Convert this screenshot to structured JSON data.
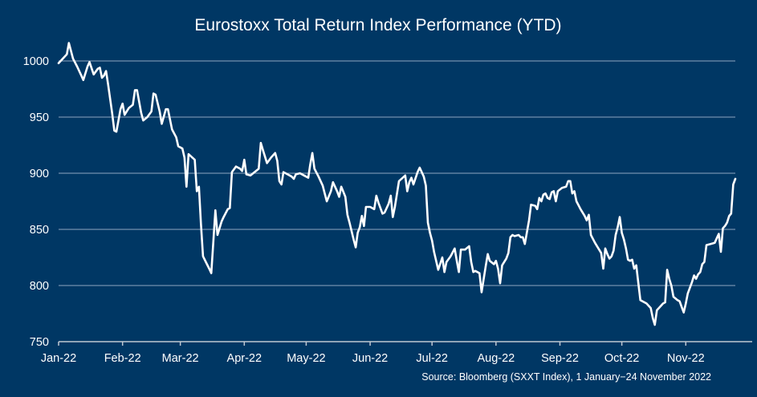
{
  "chart_data": {
    "type": "line",
    "title": "Eurostoxx Total Return Index Performance (YTD)",
    "xlabel": "",
    "ylabel": "",
    "source": "Source: Bloomberg (SXXT Index), 1 January−24 November 2022",
    "ylim": [
      750,
      1020
    ],
    "yticks": [
      "750",
      "800",
      "850",
      "900",
      "950",
      "1000"
    ],
    "ytick_values": [
      750,
      800,
      850,
      900,
      950,
      1000
    ],
    "xticks": [
      "Jan-22",
      "Feb-22",
      "Mar-22",
      "Apr-22",
      "May-22",
      "Jun-22",
      "Jul-22",
      "Aug-22",
      "Sep-22",
      "Oct-22",
      "Nov-22"
    ],
    "xtick_days": [
      0,
      31,
      59,
      90,
      120,
      151,
      181,
      212,
      243,
      273,
      304
    ],
    "x_range_days": [
      0,
      328
    ],
    "grid": "horizontal",
    "legend": "none",
    "colors": {
      "background": "#003764",
      "line": "#ffffff",
      "grid": "#8fa6bf",
      "axis": "#c0c8d2",
      "text": "#ffffff"
    },
    "series": [
      {
        "name": "SXXT Index",
        "x_unit": "days since 1 Jan 2022",
        "points": [
          [
            0,
            998
          ],
          [
            2,
            1002
          ],
          [
            4,
            1006
          ],
          [
            5,
            1016
          ],
          [
            7,
            1002
          ],
          [
            9,
            995
          ],
          [
            11,
            987
          ],
          [
            12,
            983
          ],
          [
            14,
            995
          ],
          [
            15,
            999
          ],
          [
            17,
            988
          ],
          [
            19,
            993
          ],
          [
            20,
            994
          ],
          [
            21,
            985
          ],
          [
            22,
            987
          ],
          [
            23,
            991
          ],
          [
            24,
            979
          ],
          [
            26,
            953
          ],
          [
            27,
            938
          ],
          [
            28,
            937
          ],
          [
            30,
            957
          ],
          [
            31,
            962
          ],
          [
            32,
            952
          ],
          [
            34,
            958
          ],
          [
            36,
            961
          ],
          [
            37,
            974
          ],
          [
            38,
            974
          ],
          [
            40,
            954
          ],
          [
            41,
            947
          ],
          [
            43,
            950
          ],
          [
            45,
            955
          ],
          [
            46,
            971
          ],
          [
            47,
            970
          ],
          [
            49,
            955
          ],
          [
            50,
            944
          ],
          [
            52,
            957
          ],
          [
            53,
            957
          ],
          [
            55,
            939
          ],
          [
            57,
            932
          ],
          [
            58,
            924
          ],
          [
            60,
            922
          ],
          [
            61,
            914
          ],
          [
            62,
            888
          ],
          [
            63,
            917
          ],
          [
            66,
            912
          ],
          [
            67,
            884
          ],
          [
            68,
            888
          ],
          [
            69,
            855
          ],
          [
            70,
            826
          ],
          [
            73,
            815
          ],
          [
            74,
            811
          ],
          [
            76,
            867
          ],
          [
            77,
            845
          ],
          [
            79,
            857
          ],
          [
            80,
            861
          ],
          [
            82,
            868
          ],
          [
            83,
            869
          ],
          [
            84,
            901
          ],
          [
            86,
            906
          ],
          [
            88,
            904
          ],
          [
            89,
            902
          ],
          [
            90,
            912
          ],
          [
            91,
            899
          ],
          [
            93,
            898
          ],
          [
            95,
            901
          ],
          [
            97,
            904
          ],
          [
            98,
            927
          ],
          [
            99,
            921
          ],
          [
            101,
            909
          ],
          [
            103,
            914
          ],
          [
            105,
            918
          ],
          [
            106,
            911
          ],
          [
            107,
            893
          ],
          [
            108,
            890
          ],
          [
            109,
            901
          ],
          [
            111,
            899
          ],
          [
            113,
            897
          ],
          [
            114,
            895
          ],
          [
            115,
            899
          ],
          [
            117,
            900
          ],
          [
            119,
            898
          ],
          [
            121,
            896
          ],
          [
            122,
            908
          ],
          [
            123,
            918
          ],
          [
            124,
            904
          ],
          [
            126,
            897
          ],
          [
            128,
            889
          ],
          [
            129,
            882
          ],
          [
            130,
            875
          ],
          [
            132,
            884
          ],
          [
            133,
            892
          ],
          [
            135,
            884
          ],
          [
            136,
            879
          ],
          [
            137,
            888
          ],
          [
            139,
            879
          ],
          [
            140,
            863
          ],
          [
            141,
            856
          ],
          [
            143,
            841
          ],
          [
            144,
            834
          ],
          [
            145,
            847
          ],
          [
            146,
            852
          ],
          [
            147,
            862
          ],
          [
            148,
            853
          ],
          [
            149,
            870
          ],
          [
            151,
            870
          ],
          [
            153,
            868
          ],
          [
            154,
            880
          ],
          [
            155,
            874
          ],
          [
            157,
            864
          ],
          [
            158,
            865
          ],
          [
            160,
            873
          ],
          [
            161,
            880
          ],
          [
            162,
            861
          ],
          [
            163,
            870
          ],
          [
            165,
            893
          ],
          [
            168,
            898
          ],
          [
            169,
            884
          ],
          [
            170,
            892
          ],
          [
            171,
            896
          ],
          [
            172,
            890
          ],
          [
            174,
            901
          ],
          [
            175,
            905
          ],
          [
            177,
            897
          ],
          [
            178,
            889
          ],
          [
            179,
            856
          ],
          [
            180,
            847
          ],
          [
            181,
            840
          ],
          [
            182,
            830
          ],
          [
            184,
            814
          ],
          [
            186,
            825
          ],
          [
            187,
            812
          ],
          [
            188,
            821
          ],
          [
            190,
            826
          ],
          [
            192,
            833
          ],
          [
            193,
            822
          ],
          [
            194,
            812
          ],
          [
            195,
            832
          ],
          [
            197,
            832
          ],
          [
            199,
            835
          ],
          [
            200,
            821
          ],
          [
            201,
            812
          ],
          [
            202,
            813
          ],
          [
            203,
            812
          ],
          [
            204,
            811
          ],
          [
            205,
            794
          ],
          [
            207,
            817
          ],
          [
            208,
            828
          ],
          [
            209,
            822
          ],
          [
            211,
            819
          ],
          [
            212,
            822
          ],
          [
            213,
            815
          ],
          [
            214,
            802
          ],
          [
            215,
            818
          ],
          [
            217,
            824
          ],
          [
            218,
            829
          ],
          [
            219,
            843
          ],
          [
            220,
            845
          ],
          [
            221,
            844
          ],
          [
            223,
            845
          ],
          [
            224,
            843
          ],
          [
            225,
            843
          ],
          [
            226,
            837
          ],
          [
            228,
            858
          ],
          [
            229,
            872
          ],
          [
            231,
            871
          ],
          [
            232,
            868
          ],
          [
            233,
            878
          ],
          [
            234,
            875
          ],
          [
            235,
            881
          ],
          [
            236,
            882
          ],
          [
            237,
            878
          ],
          [
            238,
            877
          ],
          [
            239,
            883
          ],
          [
            240,
            884
          ],
          [
            241,
            875
          ],
          [
            242,
            884
          ],
          [
            244,
            887
          ],
          [
            246,
            888
          ],
          [
            247,
            893
          ],
          [
            248,
            893
          ],
          [
            249,
            882
          ],
          [
            250,
            884
          ],
          [
            251,
            875
          ],
          [
            253,
            868
          ],
          [
            255,
            862
          ],
          [
            256,
            858
          ],
          [
            257,
            863
          ],
          [
            258,
            845
          ],
          [
            260,
            838
          ],
          [
            262,
            832
          ],
          [
            263,
            829
          ],
          [
            264,
            815
          ],
          [
            265,
            833
          ],
          [
            266,
            828
          ],
          [
            267,
            824
          ],
          [
            268,
            826
          ],
          [
            269,
            831
          ],
          [
            270,
            845
          ],
          [
            271,
            852
          ],
          [
            272,
            861
          ],
          [
            273,
            847
          ],
          [
            274,
            841
          ],
          [
            275,
            833
          ],
          [
            276,
            823
          ],
          [
            277,
            822
          ],
          [
            278,
            823
          ],
          [
            279,
            815
          ],
          [
            280,
            818
          ],
          [
            281,
            802
          ],
          [
            282,
            787
          ],
          [
            283,
            786
          ],
          [
            285,
            784
          ],
          [
            286,
            782
          ],
          [
            287,
            780
          ],
          [
            288,
            771
          ],
          [
            289,
            765
          ],
          [
            290,
            778
          ],
          [
            291,
            780
          ],
          [
            293,
            784
          ],
          [
            294,
            785
          ],
          [
            295,
            814
          ],
          [
            296,
            806
          ],
          [
            297,
            800
          ],
          [
            298,
            790
          ],
          [
            300,
            787
          ],
          [
            301,
            786
          ],
          [
            302,
            781
          ],
          [
            303,
            776
          ],
          [
            304,
            784
          ],
          [
            305,
            793
          ],
          [
            307,
            803
          ],
          [
            308,
            809
          ],
          [
            309,
            806
          ],
          [
            310,
            810
          ],
          [
            311,
            812
          ],
          [
            312,
            819
          ],
          [
            313,
            821
          ],
          [
            314,
            836
          ],
          [
            316,
            837
          ],
          [
            318,
            838
          ],
          [
            319,
            842
          ],
          [
            320,
            846
          ],
          [
            321,
            830
          ],
          [
            322,
            851
          ],
          [
            323,
            853
          ],
          [
            324,
            856
          ],
          [
            325,
            862
          ],
          [
            326,
            864
          ],
          [
            327,
            890
          ],
          [
            328,
            895
          ]
        ]
      }
    ]
  }
}
